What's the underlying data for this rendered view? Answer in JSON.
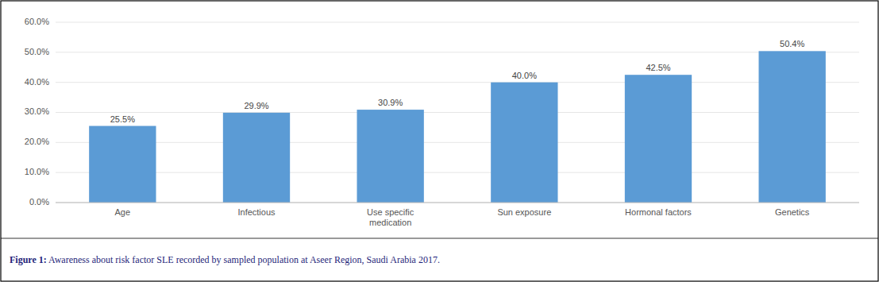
{
  "chart_data": {
    "type": "bar",
    "title": "Figure 1: Awareness about risk factor SLE recorded by sampled population at Aseer Region, Saudi Arabia 2017.",
    "categories": [
      "Age",
      "Infectious",
      "Use specific\nmedication",
      "Sun exposure",
      "Hormonal factors",
      "Genetics"
    ],
    "values": [
      25.5,
      29.9,
      30.9,
      40.0,
      42.5,
      50.4
    ],
    "value_labels": [
      "25.5%",
      "29.9%",
      "30.9%",
      "40.0%",
      "42.5%",
      "50.4%"
    ],
    "data_labels": true,
    "color": "#5b9bd5",
    "ylim": [
      0,
      60
    ],
    "yticks": [
      {
        "value": 0,
        "label": "0.0%"
      },
      {
        "value": 10,
        "label": "10.0%"
      },
      {
        "value": 20,
        "label": "20.0%"
      },
      {
        "value": 30,
        "label": "30.0%"
      },
      {
        "value": 40,
        "label": "40.0%"
      },
      {
        "value": 50,
        "label": "50.0%"
      },
      {
        "value": 60,
        "label": "60.0%"
      }
    ],
    "grid": true
  }
}
